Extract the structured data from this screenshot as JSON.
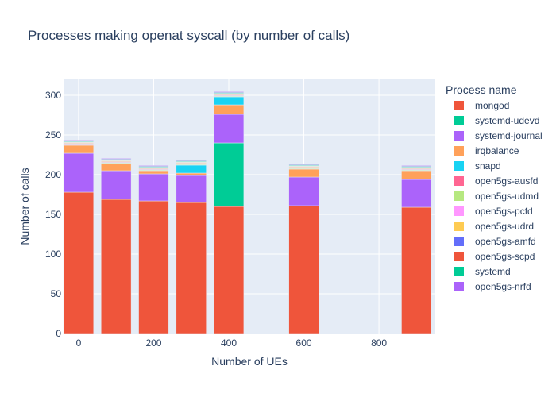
{
  "chart_data": {
    "type": "bar",
    "barmode": "stack",
    "title": "Processes making openat syscall (by number of calls)",
    "xlabel": "Number of UEs",
    "ylabel": "Number of calls",
    "xlim": [
      -40,
      950
    ],
    "ylim": [
      0,
      320
    ],
    "xticks": [
      0,
      200,
      400,
      600,
      800
    ],
    "yticks": [
      0,
      50,
      100,
      150,
      200,
      250,
      300
    ],
    "grid": true,
    "legend_title": "Process name",
    "legend_position": "right",
    "x": [
      0,
      100,
      200,
      300,
      400,
      600,
      900
    ],
    "series": [
      {
        "name": "mongod",
        "color": "#EF553B",
        "values": [
          178,
          169,
          167,
          165,
          160,
          161,
          159
        ]
      },
      {
        "name": "systemd-udevd",
        "color": "#00CC96",
        "values": [
          0,
          0,
          0,
          0,
          80,
          0,
          0
        ]
      },
      {
        "name": "systemd-journal",
        "color": "#AB63FA",
        "values": [
          49,
          36,
          34,
          34,
          36,
          36,
          35
        ]
      },
      {
        "name": "irqbalance",
        "color": "#FFA15A",
        "values": [
          10,
          9,
          4,
          3,
          12,
          10,
          11
        ]
      },
      {
        "name": "snapd",
        "color": "#19D3F3",
        "values": [
          0,
          0,
          0,
          10,
          10,
          0,
          0
        ]
      },
      {
        "name": "open5gs-ausfd",
        "color": "#FF6692",
        "values": [
          0.5,
          0.5,
          0.5,
          0.5,
          0.5,
          0.5,
          0.5
        ]
      },
      {
        "name": "open5gs-udmd",
        "color": "#B6E880",
        "values": [
          1,
          1,
          1,
          1,
          1,
          1,
          1
        ]
      },
      {
        "name": "open5gs-pcfd",
        "color": "#FF97FF",
        "values": [
          1,
          1,
          1,
          1,
          1,
          1,
          1
        ]
      },
      {
        "name": "open5gs-udrd",
        "color": "#FECB52",
        "values": [
          1,
          1,
          1,
          1,
          1,
          1,
          1
        ]
      },
      {
        "name": "open5gs-amfd",
        "color": "#636EFA",
        "values": [
          0.5,
          0.5,
          0.5,
          0.5,
          0.5,
          0.5,
          0.5
        ]
      },
      {
        "name": "open5gs-scpd",
        "color": "#EF553B",
        "values": [
          0.5,
          0.5,
          0.5,
          0.5,
          0.5,
          0.5,
          0.5
        ]
      },
      {
        "name": "systemd",
        "color": "#00CC96",
        "values": [
          1,
          1,
          1,
          1,
          1,
          1,
          1
        ]
      },
      {
        "name": "open5gs-nrfd",
        "color": "#AB63FA",
        "values": [
          1,
          1,
          1,
          1,
          1,
          1,
          1
        ]
      }
    ]
  }
}
